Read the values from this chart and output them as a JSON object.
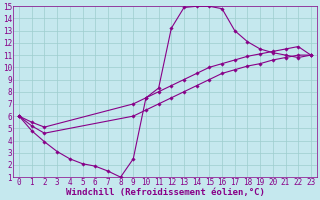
{
  "xlabel": "Windchill (Refroidissement éolien,°C)",
  "xlim": [
    -0.5,
    23.5
  ],
  "ylim": [
    1,
    15
  ],
  "xticks": [
    0,
    1,
    2,
    3,
    4,
    5,
    6,
    7,
    8,
    9,
    10,
    11,
    12,
    13,
    14,
    15,
    16,
    17,
    18,
    19,
    20,
    21,
    22,
    23
  ],
  "yticks": [
    1,
    2,
    3,
    4,
    5,
    6,
    7,
    8,
    9,
    10,
    11,
    12,
    13,
    14,
    15
  ],
  "background_color": "#c5e8ee",
  "line_color": "#880088",
  "grid_color": "#9ecece",
  "line1_x": [
    0,
    1,
    2,
    3,
    4,
    5,
    6,
    7,
    8,
    9,
    10,
    11,
    12,
    13,
    14,
    15,
    16,
    17,
    18,
    19,
    20,
    21,
    22,
    23
  ],
  "line1_y": [
    6.0,
    4.8,
    3.9,
    3.1,
    2.5,
    2.1,
    1.9,
    1.5,
    1.0,
    2.5,
    7.5,
    8.3,
    13.2,
    14.9,
    15.0,
    15.0,
    14.8,
    13.0,
    12.1,
    11.5,
    11.2,
    11.0,
    10.8,
    11.0
  ],
  "line2_x": [
    0,
    1,
    2,
    9,
    10,
    11,
    12,
    13,
    14,
    15,
    16,
    17,
    18,
    19,
    20,
    21,
    22,
    23
  ],
  "line2_y": [
    6.0,
    5.5,
    5.1,
    7.0,
    7.5,
    8.0,
    8.5,
    9.0,
    9.5,
    10.0,
    10.3,
    10.6,
    10.9,
    11.1,
    11.3,
    11.5,
    11.7,
    11.0
  ],
  "line3_x": [
    0,
    1,
    2,
    9,
    10,
    11,
    12,
    13,
    14,
    15,
    16,
    17,
    18,
    19,
    20,
    21,
    22,
    23
  ],
  "line3_y": [
    6.0,
    5.2,
    4.6,
    6.0,
    6.5,
    7.0,
    7.5,
    8.0,
    8.5,
    9.0,
    9.5,
    9.8,
    10.1,
    10.3,
    10.6,
    10.8,
    11.0,
    11.0
  ],
  "marker": "D",
  "markersize": 1.8,
  "linewidth": 0.8,
  "font_color": "#880088",
  "tick_labelsize": 5.5,
  "xlabel_fontsize": 6.5
}
